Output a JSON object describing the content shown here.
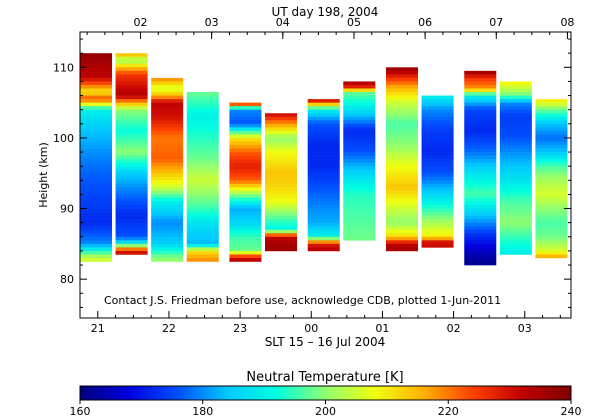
{
  "chart_data": {
    "type": "heatmap",
    "top_title": "UT day 198, 2004",
    "top_tick_labels": [
      "02",
      "03",
      "04",
      "05",
      "06",
      "07",
      "08"
    ],
    "bottom_tick_labels": [
      "21",
      "22",
      "23",
      "00",
      "01",
      "02",
      "03"
    ],
    "xlabel": "SLT 15 – 16 Jul 2004",
    "ylabel": "Height (km)",
    "ylim": [
      74.5,
      115
    ],
    "y_ticks": [
      80,
      90,
      100,
      110
    ],
    "y_tick_labels": [
      "80",
      "90",
      "100",
      "110"
    ],
    "x_range_hours": [
      20.75,
      27.65
    ],
    "note": "Contact J.S. Friedman before use, acknowledge CDB, plotted 1-Jun-2011",
    "colorbar": {
      "label": "Neutral Temperature [K]",
      "range": [
        160,
        240
      ],
      "ticks": [
        160,
        180,
        200,
        220,
        240
      ],
      "tick_labels": [
        "160",
        "180",
        "200",
        "220",
        "240"
      ]
    },
    "colors": {
      "stops": [
        "#00007c",
        "#0000e0",
        "#0050ff",
        "#00c8ff",
        "#00ffe0",
        "#90ff70",
        "#f0ff10",
        "#ffb000",
        "#ff4000",
        "#c00000",
        "#800000"
      ]
    },
    "columns": [
      {
        "x0": 20.75,
        "x1": 21.2,
        "top": 112.0,
        "bottom": 82.5,
        "profile": [
          [
            112,
            238
          ],
          [
            110.5,
            235
          ],
          [
            108.5,
            232
          ],
          [
            106.5,
            210
          ],
          [
            105.5,
            224
          ],
          [
            104,
            190
          ],
          [
            101,
            184
          ],
          [
            96,
            178
          ],
          [
            92,
            175
          ],
          [
            88,
            172
          ],
          [
            85,
            180
          ],
          [
            83,
            205
          ]
        ]
      },
      {
        "x0": 21.25,
        "x1": 21.7,
        "top": 112.0,
        "bottom": 83.5,
        "profile": [
          [
            112,
            218
          ],
          [
            111,
            200
          ],
          [
            110,
            214
          ],
          [
            109,
            225
          ],
          [
            106,
            234
          ],
          [
            104,
            200
          ],
          [
            101,
            192
          ],
          [
            98,
            200
          ],
          [
            95,
            185
          ],
          [
            92,
            178
          ],
          [
            89,
            172
          ],
          [
            86,
            176
          ],
          [
            85,
            190
          ],
          [
            84,
            230
          ]
        ]
      },
      {
        "x0": 21.75,
        "x1": 22.2,
        "top": 108.5,
        "bottom": 82.5,
        "profile": [
          [
            108.5,
            220
          ],
          [
            107,
            205
          ],
          [
            106,
            215
          ],
          [
            105,
            232
          ],
          [
            103,
            230
          ],
          [
            100,
            220
          ],
          [
            97,
            222
          ],
          [
            95,
            214
          ],
          [
            93,
            205
          ],
          [
            91,
            190
          ],
          [
            88,
            180
          ],
          [
            85,
            185
          ],
          [
            83,
            200
          ]
        ]
      },
      {
        "x0": 22.25,
        "x1": 22.7,
        "top": 106.5,
        "bottom": 82.5,
        "profile": [
          [
            106.5,
            198
          ],
          [
            103,
            190
          ],
          [
            100,
            194
          ],
          [
            97,
            198
          ],
          [
            94,
            205
          ],
          [
            92,
            200
          ],
          [
            90,
            195
          ],
          [
            88,
            188
          ],
          [
            85,
            183
          ],
          [
            84,
            210
          ],
          [
            83,
            218
          ]
        ]
      },
      {
        "x0": 22.85,
        "x1": 23.3,
        "top": 105.0,
        "bottom": 82.5,
        "profile": [
          [
            105,
            236
          ],
          [
            104,
            180
          ],
          [
            102,
            176
          ],
          [
            100,
            210
          ],
          [
            98,
            222
          ],
          [
            96,
            228
          ],
          [
            94,
            222
          ],
          [
            92,
            200
          ],
          [
            90,
            182
          ],
          [
            88,
            186
          ],
          [
            86,
            195
          ],
          [
            84,
            198
          ],
          [
            83,
            232
          ]
        ]
      },
      {
        "x0": 23.35,
        "x1": 23.8,
        "top": 103.5,
        "bottom": 84.0,
        "profile": [
          [
            103.5,
            232
          ],
          [
            102,
            218
          ],
          [
            100,
            200
          ],
          [
            98,
            208
          ],
          [
            95,
            214
          ],
          [
            93,
            212
          ],
          [
            91,
            208
          ],
          [
            89,
            198
          ],
          [
            87,
            190
          ],
          [
            86,
            232
          ],
          [
            84.5,
            236
          ]
        ]
      },
      {
        "x0": 23.95,
        "x1": 24.4,
        "top": 105.5,
        "bottom": 84.0,
        "profile": [
          [
            105.5,
            236
          ],
          [
            104,
            190
          ],
          [
            102,
            176
          ],
          [
            99,
            172
          ],
          [
            96,
            172
          ],
          [
            93,
            176
          ],
          [
            90,
            180
          ],
          [
            88,
            182
          ],
          [
            86,
            190
          ],
          [
            85,
            228
          ],
          [
            84,
            234
          ]
        ]
      },
      {
        "x0": 24.45,
        "x1": 24.9,
        "top": 108.0,
        "bottom": 85.5,
        "profile": [
          [
            108,
            236
          ],
          [
            107,
            225
          ],
          [
            106.5,
            198
          ],
          [
            104,
            188
          ],
          [
            101,
            172
          ],
          [
            98,
            176
          ],
          [
            95,
            186
          ],
          [
            92,
            194
          ],
          [
            89,
            196
          ],
          [
            86,
            198
          ]
        ]
      },
      {
        "x0": 25.05,
        "x1": 25.5,
        "top": 110.0,
        "bottom": 84.0,
        "profile": [
          [
            110,
            238
          ],
          [
            109,
            230
          ],
          [
            107,
            215
          ],
          [
            105,
            205
          ],
          [
            102,
            196
          ],
          [
            99,
            200
          ],
          [
            96,
            208
          ],
          [
            93,
            214
          ],
          [
            90,
            205
          ],
          [
            88,
            200
          ],
          [
            86,
            212
          ],
          [
            85,
            232
          ],
          [
            84,
            236
          ]
        ]
      },
      {
        "x0": 25.55,
        "x1": 26.0,
        "top": 106.0,
        "bottom": 84.5,
        "profile": [
          [
            106,
            190
          ],
          [
            104,
            180
          ],
          [
            101,
            174
          ],
          [
            98,
            172
          ],
          [
            95,
            176
          ],
          [
            92,
            186
          ],
          [
            89,
            198
          ],
          [
            86,
            210
          ],
          [
            85,
            236
          ],
          [
            84.5,
            225
          ]
        ]
      },
      {
        "x0": 26.15,
        "x1": 26.6,
        "top": 109.5,
        "bottom": 82.0,
        "profile": [
          [
            109.5,
            238
          ],
          [
            108.5,
            226
          ],
          [
            107,
            218
          ],
          [
            106,
            190
          ],
          [
            104,
            175
          ],
          [
            101,
            172
          ],
          [
            98,
            178
          ],
          [
            95,
            188
          ],
          [
            92,
            196
          ],
          [
            89,
            184
          ],
          [
            86,
            172
          ],
          [
            84,
            166
          ],
          [
            82.5,
            162
          ]
        ]
      },
      {
        "x0": 26.65,
        "x1": 27.1,
        "top": 108.0,
        "bottom": 83.5,
        "profile": [
          [
            108,
            210
          ],
          [
            106,
            198
          ],
          [
            105,
            180
          ],
          [
            103,
            174
          ],
          [
            100,
            176
          ],
          [
            97,
            182
          ],
          [
            94,
            188
          ],
          [
            91,
            196
          ],
          [
            88,
            200
          ],
          [
            86,
            195
          ],
          [
            84,
            190
          ]
        ]
      },
      {
        "x0": 27.15,
        "x1": 27.6,
        "top": 105.5,
        "bottom": 83.0,
        "profile": [
          [
            105.5,
            212
          ],
          [
            104,
            198
          ],
          [
            102,
            184
          ],
          [
            100,
            178
          ],
          [
            98,
            184
          ],
          [
            96,
            196
          ],
          [
            94,
            202
          ],
          [
            92,
            206
          ],
          [
            90,
            200
          ],
          [
            88,
            196
          ],
          [
            86,
            198
          ],
          [
            84,
            206
          ],
          [
            83,
            218
          ]
        ]
      }
    ]
  }
}
